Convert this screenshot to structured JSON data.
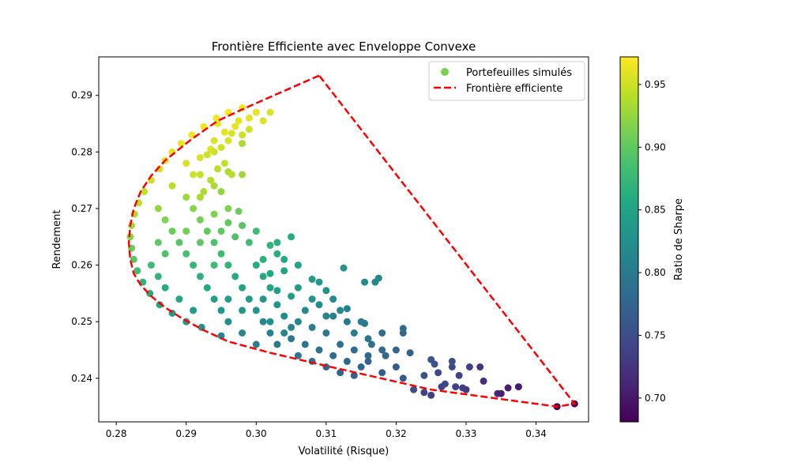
{
  "chart_data": {
    "type": "scatter",
    "title": "Frontière Efficiente avec Enveloppe Convexe",
    "xlabel": "Volatilité (Risque)",
    "ylabel": "Rendement",
    "colorbar_label": "Ratio de Sharpe",
    "colormap": "viridis",
    "xlim": [
      0.2775,
      0.3475
    ],
    "ylim": [
      0.2323,
      0.2968
    ],
    "clim": [
      0.681,
      0.972
    ],
    "x_ticks": [
      0.28,
      0.29,
      0.3,
      0.31,
      0.32,
      0.33,
      0.34
    ],
    "x_tick_labels": [
      "0.28",
      "0.29",
      "0.30",
      "0.31",
      "0.32",
      "0.33",
      "0.34"
    ],
    "y_ticks": [
      0.24,
      0.25,
      0.26,
      0.27,
      0.28,
      0.29
    ],
    "y_tick_labels": [
      "0.24",
      "0.25",
      "0.26",
      "0.27",
      "0.28",
      "0.29"
    ],
    "c_ticks": [
      0.7,
      0.75,
      0.8,
      0.85,
      0.9,
      0.95
    ],
    "c_tick_labels": [
      "0.70",
      "0.75",
      "0.80",
      "0.85",
      "0.90",
      "0.95"
    ],
    "grid": false,
    "legend_position": "top-right",
    "legend": [
      {
        "label": "Portefeuilles simulés",
        "type": "marker",
        "color": "#7ad151"
      },
      {
        "label": "Frontière efficiente",
        "type": "dashed-line",
        "color": "#ff0000"
      }
    ],
    "series": [
      {
        "name": "Portefeuilles simulés",
        "points": [
          [
            0.282,
            0.265,
            0.92
          ],
          [
            0.2822,
            0.263,
            0.905
          ],
          [
            0.2822,
            0.267,
            0.93
          ],
          [
            0.2825,
            0.261,
            0.895
          ],
          [
            0.2826,
            0.269,
            0.935
          ],
          [
            0.283,
            0.259,
            0.88
          ],
          [
            0.2832,
            0.271,
            0.94
          ],
          [
            0.2838,
            0.257,
            0.87
          ],
          [
            0.284,
            0.273,
            0.945
          ],
          [
            0.2848,
            0.255,
            0.86
          ],
          [
            0.285,
            0.275,
            0.95
          ],
          [
            0.2862,
            0.253,
            0.85
          ],
          [
            0.2862,
            0.277,
            0.955
          ],
          [
            0.287,
            0.2785,
            0.96
          ],
          [
            0.288,
            0.28,
            0.962
          ],
          [
            0.288,
            0.2515,
            0.84
          ],
          [
            0.2893,
            0.2815,
            0.964
          ],
          [
            0.29,
            0.25,
            0.835
          ],
          [
            0.2908,
            0.283,
            0.966
          ],
          [
            0.2922,
            0.249,
            0.828
          ],
          [
            0.2925,
            0.2845,
            0.968
          ],
          [
            0.2943,
            0.286,
            0.969
          ],
          [
            0.295,
            0.2475,
            0.815
          ],
          [
            0.296,
            0.287,
            0.97
          ],
          [
            0.298,
            0.2878,
            0.97
          ],
          [
            0.299,
            0.286,
            0.96
          ],
          [
            0.302,
            0.287,
            0.955
          ],
          [
            0.301,
            0.2855,
            0.955
          ],
          [
            0.2975,
            0.2855,
            0.96
          ],
          [
            0.2965,
            0.2833,
            0.955
          ],
          [
            0.298,
            0.283,
            0.95
          ],
          [
            0.294,
            0.282,
            0.955
          ],
          [
            0.295,
            0.2808,
            0.95
          ],
          [
            0.293,
            0.2795,
            0.95
          ],
          [
            0.2945,
            0.277,
            0.94
          ],
          [
            0.298,
            0.2815,
            0.935
          ],
          [
            0.296,
            0.2765,
            0.935
          ],
          [
            0.298,
            0.276,
            0.93
          ],
          [
            0.292,
            0.276,
            0.945
          ],
          [
            0.294,
            0.274,
            0.935
          ],
          [
            0.295,
            0.273,
            0.925
          ],
          [
            0.292,
            0.272,
            0.935
          ],
          [
            0.296,
            0.27,
            0.915
          ],
          [
            0.2975,
            0.2695,
            0.905
          ],
          [
            0.294,
            0.269,
            0.915
          ],
          [
            0.296,
            0.2675,
            0.9
          ],
          [
            0.298,
            0.267,
            0.895
          ],
          [
            0.295,
            0.266,
            0.9
          ],
          [
            0.297,
            0.265,
            0.89
          ],
          [
            0.3,
            0.266,
            0.88
          ],
          [
            0.299,
            0.264,
            0.88
          ],
          [
            0.302,
            0.2635,
            0.87
          ],
          [
            0.305,
            0.265,
            0.86
          ],
          [
            0.303,
            0.262,
            0.86
          ],
          [
            0.301,
            0.261,
            0.865
          ],
          [
            0.306,
            0.26,
            0.85
          ],
          [
            0.304,
            0.259,
            0.85
          ],
          [
            0.302,
            0.2585,
            0.855
          ],
          [
            0.308,
            0.2575,
            0.84
          ],
          [
            0.309,
            0.257,
            0.835
          ],
          [
            0.306,
            0.256,
            0.84
          ],
          [
            0.31,
            0.2555,
            0.83
          ],
          [
            0.3125,
            0.2595,
            0.83
          ],
          [
            0.3155,
            0.257,
            0.82
          ],
          [
            0.317,
            0.257,
            0.815
          ],
          [
            0.3175,
            0.2577,
            0.815
          ],
          [
            0.308,
            0.254,
            0.83
          ],
          [
            0.305,
            0.2545,
            0.84
          ],
          [
            0.303,
            0.2555,
            0.845
          ],
          [
            0.312,
            0.252,
            0.815
          ],
          [
            0.313,
            0.2523,
            0.81
          ],
          [
            0.31,
            0.251,
            0.815
          ],
          [
            0.315,
            0.25,
            0.805
          ],
          [
            0.3155,
            0.2497,
            0.8
          ],
          [
            0.314,
            0.248,
            0.8
          ],
          [
            0.316,
            0.247,
            0.795
          ],
          [
            0.3165,
            0.246,
            0.79
          ],
          [
            0.318,
            0.245,
            0.785
          ],
          [
            0.3185,
            0.244,
            0.78
          ],
          [
            0.321,
            0.2488,
            0.785
          ],
          [
            0.321,
            0.248,
            0.78
          ],
          [
            0.32,
            0.245,
            0.775
          ],
          [
            0.322,
            0.2445,
            0.77
          ],
          [
            0.32,
            0.242,
            0.765
          ],
          [
            0.318,
            0.241,
            0.765
          ],
          [
            0.321,
            0.24,
            0.76
          ],
          [
            0.324,
            0.2405,
            0.755
          ],
          [
            0.3225,
            0.238,
            0.75
          ],
          [
            0.325,
            0.2433,
            0.76
          ],
          [
            0.3255,
            0.2425,
            0.755
          ],
          [
            0.326,
            0.241,
            0.745
          ],
          [
            0.327,
            0.239,
            0.745
          ],
          [
            0.3265,
            0.2385,
            0.74
          ],
          [
            0.325,
            0.237,
            0.735
          ],
          [
            0.324,
            0.2375,
            0.738
          ],
          [
            0.328,
            0.242,
            0.745
          ],
          [
            0.329,
            0.2405,
            0.74
          ],
          [
            0.3285,
            0.2385,
            0.735
          ],
          [
            0.3295,
            0.2383,
            0.732
          ],
          [
            0.328,
            0.243,
            0.75
          ],
          [
            0.3305,
            0.242,
            0.735
          ],
          [
            0.33,
            0.238,
            0.728
          ],
          [
            0.332,
            0.242,
            0.725
          ],
          [
            0.3325,
            0.2395,
            0.72
          ],
          [
            0.3345,
            0.2373,
            0.71
          ],
          [
            0.335,
            0.2373,
            0.708
          ],
          [
            0.336,
            0.2383,
            0.705
          ],
          [
            0.3375,
            0.2385,
            0.702
          ],
          [
            0.343,
            0.235,
            0.682
          ],
          [
            0.3455,
            0.2355,
            0.684
          ],
          [
            0.286,
            0.27,
            0.925
          ],
          [
            0.287,
            0.268,
            0.915
          ],
          [
            0.288,
            0.266,
            0.905
          ],
          [
            0.289,
            0.264,
            0.895
          ],
          [
            0.29,
            0.262,
            0.885
          ],
          [
            0.291,
            0.26,
            0.875
          ],
          [
            0.292,
            0.258,
            0.865
          ],
          [
            0.293,
            0.256,
            0.855
          ],
          [
            0.294,
            0.254,
            0.845
          ],
          [
            0.295,
            0.252,
            0.835
          ],
          [
            0.288,
            0.274,
            0.94
          ],
          [
            0.29,
            0.272,
            0.93
          ],
          [
            0.291,
            0.27,
            0.92
          ],
          [
            0.292,
            0.268,
            0.91
          ],
          [
            0.293,
            0.266,
            0.9
          ],
          [
            0.294,
            0.264,
            0.89
          ],
          [
            0.295,
            0.262,
            0.88
          ],
          [
            0.296,
            0.26,
            0.87
          ],
          [
            0.297,
            0.258,
            0.86
          ],
          [
            0.298,
            0.256,
            0.85
          ],
          [
            0.299,
            0.254,
            0.84
          ],
          [
            0.3,
            0.252,
            0.83
          ],
          [
            0.301,
            0.25,
            0.82
          ],
          [
            0.302,
            0.248,
            0.81
          ],
          [
            0.303,
            0.246,
            0.8
          ],
          [
            0.296,
            0.25,
            0.825
          ],
          [
            0.298,
            0.248,
            0.815
          ],
          [
            0.3,
            0.246,
            0.805
          ],
          [
            0.305,
            0.247,
            0.8
          ],
          [
            0.307,
            0.246,
            0.795
          ],
          [
            0.309,
            0.245,
            0.79
          ],
          [
            0.311,
            0.244,
            0.785
          ],
          [
            0.313,
            0.243,
            0.78
          ],
          [
            0.315,
            0.242,
            0.775
          ],
          [
            0.31,
            0.242,
            0.78
          ],
          [
            0.312,
            0.241,
            0.775
          ],
          [
            0.314,
            0.2405,
            0.77
          ],
          [
            0.316,
            0.243,
            0.775
          ],
          [
            0.308,
            0.249,
            0.805
          ],
          [
            0.306,
            0.25,
            0.815
          ],
          [
            0.304,
            0.251,
            0.82
          ],
          [
            0.31,
            0.248,
            0.8
          ],
          [
            0.307,
            0.252,
            0.82
          ],
          [
            0.309,
            0.253,
            0.82
          ],
          [
            0.311,
            0.254,
            0.818
          ],
          [
            0.285,
            0.26,
            0.88
          ],
          [
            0.286,
            0.258,
            0.87
          ],
          [
            0.287,
            0.256,
            0.86
          ],
          [
            0.289,
            0.254,
            0.85
          ],
          [
            0.291,
            0.252,
            0.84
          ],
          [
            0.286,
            0.264,
            0.9
          ],
          [
            0.287,
            0.262,
            0.89
          ],
          [
            0.29,
            0.266,
            0.91
          ],
          [
            0.292,
            0.264,
            0.9
          ],
          [
            0.294,
            0.26,
            0.88
          ],
          [
            0.296,
            0.254,
            0.845
          ],
          [
            0.298,
            0.252,
            0.835
          ],
          [
            0.301,
            0.254,
            0.835
          ],
          [
            0.303,
            0.253,
            0.83
          ],
          [
            0.305,
            0.249,
            0.815
          ],
          [
            0.291,
            0.276,
            0.95
          ],
          [
            0.29,
            0.278,
            0.955
          ],
          [
            0.292,
            0.279,
            0.955
          ],
          [
            0.2935,
            0.2805,
            0.958
          ],
          [
            0.2955,
            0.2835,
            0.96
          ],
          [
            0.297,
            0.2845,
            0.962
          ],
          [
            0.3,
            0.287,
            0.962
          ],
          [
            0.2945,
            0.285,
            0.965
          ],
          [
            0.296,
            0.282,
            0.955
          ],
          [
            0.299,
            0.284,
            0.95
          ],
          [
            0.294,
            0.28,
            0.95
          ],
          [
            0.2955,
            0.278,
            0.945
          ],
          [
            0.2965,
            0.276,
            0.94
          ],
          [
            0.2935,
            0.275,
            0.94
          ],
          [
            0.2925,
            0.273,
            0.935
          ],
          [
            0.302,
            0.25,
            0.825
          ],
          [
            0.304,
            0.248,
            0.812
          ],
          [
            0.306,
            0.244,
            0.795
          ],
          [
            0.308,
            0.243,
            0.79
          ],
          [
            0.312,
            0.246,
            0.79
          ],
          [
            0.314,
            0.245,
            0.785
          ],
          [
            0.316,
            0.244,
            0.78
          ],
          [
            0.318,
            0.248,
            0.785
          ],
          [
            0.313,
            0.25,
            0.8
          ],
          [
            0.311,
            0.251,
            0.805
          ],
          [
            0.3,
            0.26,
            0.86
          ],
          [
            0.301,
            0.258,
            0.855
          ],
          [
            0.302,
            0.256,
            0.85
          ],
          [
            0.304,
            0.261,
            0.855
          ],
          [
            0.303,
            0.264,
            0.865
          ]
        ]
      }
    ],
    "frontier": {
      "name": "Frontière efficiente",
      "points": [
        [
          0.309,
          0.2935
        ],
        [
          0.2985,
          0.2878
        ],
        [
          0.2945,
          0.2855
        ],
        [
          0.2905,
          0.282
        ],
        [
          0.287,
          0.2785
        ],
        [
          0.285,
          0.2758
        ],
        [
          0.2835,
          0.273
        ],
        [
          0.2825,
          0.27
        ],
        [
          0.282,
          0.267
        ],
        [
          0.2818,
          0.264
        ],
        [
          0.282,
          0.261
        ],
        [
          0.2825,
          0.2585
        ],
        [
          0.2835,
          0.2565
        ],
        [
          0.285,
          0.2545
        ],
        [
          0.287,
          0.2525
        ],
        [
          0.2895,
          0.2505
        ],
        [
          0.2925,
          0.2485
        ],
        [
          0.296,
          0.2465
        ],
        [
          0.302,
          0.2445
        ],
        [
          0.31,
          0.2422
        ],
        [
          0.325,
          0.238
        ],
        [
          0.343,
          0.235
        ],
        [
          0.3455,
          0.2355
        ],
        [
          0.309,
          0.2935
        ]
      ]
    }
  }
}
